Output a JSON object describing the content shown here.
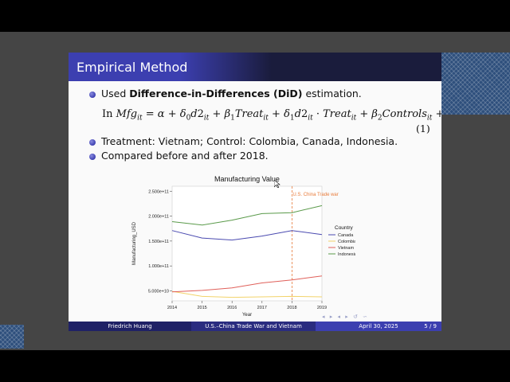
{
  "slide": {
    "title": "Empirical Method",
    "bullets": [
      {
        "prefix": "Used ",
        "bold": "Difference-in-Differences (DiD)",
        "suffix": " estimation."
      },
      {
        "text": "Treatment: Vietnam; Control: Colombia, Canada, Indonesia."
      },
      {
        "text": "Compared before and after 2018."
      }
    ],
    "equation_lead": "In",
    "equation_number": "(1)",
    "footer": {
      "author": "Friedrich Huang",
      "title": "U.S.–China Trade War and Vietnam",
      "date": "April 30, 2025",
      "page": "5 / 9"
    }
  },
  "chart_data": {
    "type": "line",
    "title": "Manufacturing Value",
    "xlabel": "Year",
    "ylabel": "Manufacturing_USD",
    "x": [
      2014,
      2015,
      2016,
      2017,
      2018,
      2019
    ],
    "xticks": [
      "2014",
      "2015",
      "2016",
      "2017",
      "2018",
      "2019"
    ],
    "yticks": [
      {
        "value": 50000000000.0,
        "label": "5.000e+10"
      },
      {
        "value": 100000000000.0,
        "label": "1.000e+11"
      },
      {
        "value": 150000000000.0,
        "label": "1.500e+11"
      },
      {
        "value": 200000000000.0,
        "label": "2.000e+11"
      },
      {
        "value": 250000000000.0,
        "label": "2.500e+11"
      }
    ],
    "ylim": [
      30000000000.0,
      260000000000.0
    ],
    "annotation": {
      "x": 2018,
      "label": "U.S. China Trade war",
      "color": "#e87b3a"
    },
    "legend_title": "Country",
    "legend_position": "right",
    "series": [
      {
        "name": "Canada",
        "color": "#4a4ab0",
        "values": [
          171000000000.0,
          156000000000.0,
          152000000000.0,
          160000000000.0,
          171000000000.0,
          163000000000.0
        ]
      },
      {
        "name": "Colombia",
        "color": "#f2d36a",
        "values": [
          49000000000.0,
          39000000000.0,
          37000000000.0,
          38000000000.0,
          39000000000.0,
          38000000000.0
        ]
      },
      {
        "name": "Vietnam",
        "color": "#e0605a",
        "values": [
          48000000000.0,
          51000000000.0,
          56000000000.0,
          66000000000.0,
          72000000000.0,
          80000000000.0
        ]
      },
      {
        "name": "Indonesia",
        "color": "#5a9a4a",
        "values": [
          189000000000.0,
          182000000000.0,
          192000000000.0,
          205000000000.0,
          207000000000.0,
          221000000000.0
        ]
      }
    ]
  }
}
